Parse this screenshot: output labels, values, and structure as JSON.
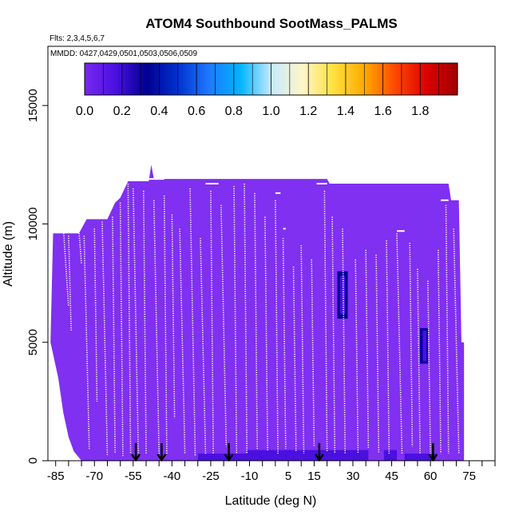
{
  "chart_data": {
    "type": "heatmap",
    "title": "ATOM4 Southbound SootMass_PALMS",
    "flights_note": "Flts: 2,3,4,5,6,7",
    "dates_note": "MMDD: 0427,0429,0501,0503,0506,0509",
    "xlabel": "Latitude (deg N)",
    "ylabel": "Altitude (m)",
    "xlim": [
      -88,
      85
    ],
    "ylim": [
      0,
      17500
    ],
    "x_ticks": [
      -85,
      -70,
      -55,
      -40,
      -25,
      -10,
      5,
      15,
      30,
      45,
      60,
      75
    ],
    "x_minor_ticks": [
      -80,
      -75,
      -65,
      -60,
      -50,
      -45,
      -35,
      -30,
      -20,
      -15,
      -5,
      0,
      10,
      20,
      25,
      35,
      40,
      50,
      55,
      65,
      70,
      80,
      85
    ],
    "y_ticks": [
      0,
      5000,
      10000,
      15000
    ],
    "colorbar": {
      "ticks": [
        0.0,
        0.2,
        0.4,
        0.6,
        0.8,
        1.0,
        1.2,
        1.4,
        1.6,
        1.8
      ],
      "range": [
        0.0,
        2.0
      ],
      "colors": [
        "#7a28f0",
        "#4a10e0",
        "#000090",
        "#0032d0",
        "#1e78ff",
        "#00b4ff",
        "#c4eaff",
        "#fff6c8",
        "#ffe040",
        "#ffaa00",
        "#ff4800",
        "#dc0000",
        "#a00000"
      ],
      "placement": "top-inside"
    },
    "arrow_latitudes": [
      -54,
      -44,
      -18,
      17,
      61
    ],
    "background_value": 0.05,
    "background_color": "#8030f0",
    "curtain_top_by_latitude": [
      {
        "lat": -87,
        "alt": 5000
      },
      {
        "lat": -86,
        "alt": 9600
      },
      {
        "lat": -76,
        "alt": 9600
      },
      {
        "lat": -73,
        "alt": 10200
      },
      {
        "lat": -65,
        "alt": 10200
      },
      {
        "lat": -62,
        "alt": 10900
      },
      {
        "lat": -60,
        "alt": 11100
      },
      {
        "lat": -57,
        "alt": 11800
      },
      {
        "lat": -49,
        "alt": 11800
      },
      {
        "lat": -48,
        "alt": 12500
      },
      {
        "lat": -47,
        "alt": 11900
      },
      {
        "lat": 20,
        "alt": 11900
      },
      {
        "lat": 21,
        "alt": 11700
      },
      {
        "lat": 67,
        "alt": 11700
      },
      {
        "lat": 68,
        "alt": 11000
      },
      {
        "lat": 71,
        "alt": 11000
      },
      {
        "lat": 72,
        "alt": 5000
      },
      {
        "lat": 73,
        "alt": 5000
      }
    ],
    "curtain_bottom_by_latitude": [
      {
        "lat": -87,
        "alt": 5000
      },
      {
        "lat": -84,
        "alt": 3500
      },
      {
        "lat": -82,
        "alt": 2000
      },
      {
        "lat": -80,
        "alt": 1000
      },
      {
        "lat": -78,
        "alt": 400
      },
      {
        "lat": -75,
        "alt": 0
      },
      {
        "lat": 73,
        "alt": 0
      }
    ],
    "enhanced_patches": [
      {
        "lat_min": 24,
        "lat_max": 28,
        "alt_min": 6000,
        "alt_max": 8000,
        "value": 0.25
      },
      {
        "lat_min": 25,
        "lat_max": 27,
        "alt_min": 6200,
        "alt_max": 7800,
        "value": 0.2
      },
      {
        "lat_min": 56,
        "lat_max": 59,
        "alt_min": 4100,
        "alt_max": 5600,
        "value": 0.25
      },
      {
        "lat_min": 57,
        "lat_max": 58.5,
        "alt_min": 4200,
        "alt_max": 5500,
        "value": 0.2
      },
      {
        "lat_min": -11,
        "lat_max": 36,
        "alt_min": 0,
        "alt_max": 450,
        "value": 0.12
      },
      {
        "lat_min": 42,
        "lat_max": 47,
        "alt_min": 0,
        "alt_max": 450,
        "value": 0.12
      },
      {
        "lat_min": -30,
        "lat_max": -8,
        "alt_min": 0,
        "alt_max": 300,
        "value": 0.1
      },
      {
        "lat_min": 50,
        "lat_max": 62,
        "alt_min": 0,
        "alt_max": 300,
        "value": 0.1
      }
    ],
    "flight_track_profiles": [
      {
        "lat0": -82,
        "lat1": -80,
        "alt0": 9800,
        "alt1": 6500
      },
      {
        "lat0": -80,
        "lat1": -79,
        "alt0": 9500,
        "alt1": 5500
      },
      {
        "lat0": -76,
        "lat1": -75,
        "alt0": 9700,
        "alt1": 8300
      },
      {
        "lat0": -74,
        "lat1": -72,
        "alt0": 9500,
        "alt1": 500
      },
      {
        "lat0": -70,
        "lat1": -69,
        "alt0": 9800,
        "alt1": 2500
      },
      {
        "lat0": -67,
        "lat1": -65,
        "alt0": 10100,
        "alt1": 200
      },
      {
        "lat0": -63,
        "lat1": -62,
        "alt0": 10300,
        "alt1": 300
      },
      {
        "lat0": -60,
        "lat1": -59,
        "alt0": 10900,
        "alt1": 200
      },
      {
        "lat0": -57,
        "lat1": -56,
        "alt0": 11700,
        "alt1": 300
      },
      {
        "lat0": -55,
        "lat1": -53,
        "alt0": 11500,
        "alt1": 300
      },
      {
        "lat0": -51,
        "lat1": -50,
        "alt0": 11400,
        "alt1": 300
      },
      {
        "lat0": -47,
        "lat1": -45,
        "alt0": 11000,
        "alt1": 300
      },
      {
        "lat0": -43,
        "lat1": -42,
        "alt0": 11200,
        "alt1": 300
      },
      {
        "lat0": -40,
        "lat1": -39,
        "alt0": 10400,
        "alt1": 1800
      },
      {
        "lat0": -37,
        "lat1": -35,
        "alt0": 9800,
        "alt1": 300
      },
      {
        "lat0": -33,
        "lat1": -31,
        "alt0": 11500,
        "alt1": 200
      },
      {
        "lat0": -29,
        "lat1": -27,
        "alt0": 9400,
        "alt1": 300
      },
      {
        "lat0": -25,
        "lat1": -24,
        "alt0": 11400,
        "alt1": 300
      },
      {
        "lat0": -21,
        "lat1": -19,
        "alt0": 10800,
        "alt1": 600
      },
      {
        "lat0": -16,
        "lat1": -15,
        "alt0": 11600,
        "alt1": 300
      },
      {
        "lat0": -12,
        "lat1": -11,
        "alt0": 11700,
        "alt1": 300
      },
      {
        "lat0": -8,
        "lat1": -7,
        "alt0": 11300,
        "alt1": 500
      },
      {
        "lat0": -4,
        "lat1": -3,
        "alt0": 10300,
        "alt1": 400
      },
      {
        "lat0": 0,
        "lat1": 1,
        "alt0": 11000,
        "alt1": 300
      },
      {
        "lat0": 3,
        "lat1": 4,
        "alt0": 9400,
        "alt1": 500
      },
      {
        "lat0": 7,
        "lat1": 8,
        "alt0": 8200,
        "alt1": 400
      },
      {
        "lat0": 10,
        "lat1": 11,
        "alt0": 9100,
        "alt1": 300
      },
      {
        "lat0": 14,
        "lat1": 15,
        "alt0": 8500,
        "alt1": 600
      },
      {
        "lat0": 19,
        "lat1": 20,
        "alt0": 11400,
        "alt1": 400
      },
      {
        "lat0": 22,
        "lat1": 23,
        "alt0": 10300,
        "alt1": 300
      },
      {
        "lat0": 26,
        "lat1": 27,
        "alt0": 9800,
        "alt1": 300
      },
      {
        "lat0": 31,
        "lat1": 32,
        "alt0": 8500,
        "alt1": 300
      },
      {
        "lat0": 35,
        "lat1": 36,
        "alt0": 8900,
        "alt1": 500
      },
      {
        "lat0": 39,
        "lat1": 40,
        "alt0": 8700,
        "alt1": 300
      },
      {
        "lat0": 43,
        "lat1": 44,
        "alt0": 9300,
        "alt1": 300
      },
      {
        "lat0": 47,
        "lat1": 49,
        "alt0": 9600,
        "alt1": 300
      },
      {
        "lat0": 52,
        "lat1": 53,
        "alt0": 9200,
        "alt1": 600
      },
      {
        "lat0": 55,
        "lat1": 56,
        "alt0": 8100,
        "alt1": 300
      },
      {
        "lat0": 59,
        "lat1": 60,
        "alt0": 7600,
        "alt1": 300
      },
      {
        "lat0": 63,
        "lat1": 64,
        "alt0": 8900,
        "alt1": 300
      },
      {
        "lat0": 66,
        "lat1": 67,
        "alt0": 10800,
        "alt1": 300
      },
      {
        "lat0": 69,
        "lat1": 71,
        "alt0": 9800,
        "alt1": 300
      }
    ],
    "flight_track_legs": [
      {
        "lat0": -60,
        "lat1": -56,
        "alt": 11900
      },
      {
        "lat0": -49,
        "lat1": -43,
        "alt": 11900
      },
      {
        "lat0": 16,
        "lat1": 20,
        "alt": 11700
      },
      {
        "lat0": -27,
        "lat1": -22,
        "alt": 11700
      },
      {
        "lat0": 0,
        "lat1": 2,
        "alt": 11300
      },
      {
        "lat0": 47,
        "lat1": 50,
        "alt": 9700
      },
      {
        "lat0": -86,
        "lat1": -82,
        "alt": 9700
      },
      {
        "lat0": 3,
        "lat1": 4,
        "alt": 9800
      },
      {
        "lat0": 64,
        "lat1": 67,
        "alt": 11000
      }
    ]
  }
}
